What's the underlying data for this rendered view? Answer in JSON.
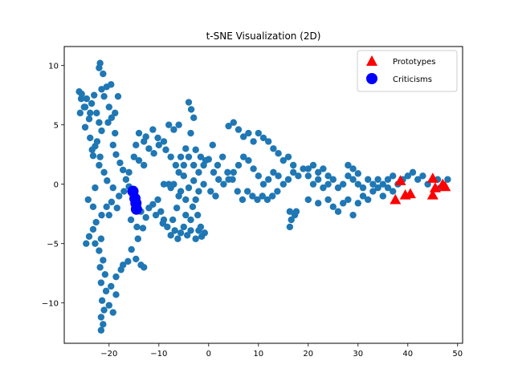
{
  "chart_data": {
    "type": "scatter",
    "title": "t-SNE Visualization (2D)",
    "xlabel": "",
    "ylabel": "",
    "xlim": [
      -29,
      51
    ],
    "ylim": [
      -13.4,
      11.6
    ],
    "xticks": [
      -20,
      -10,
      0,
      10,
      20,
      30,
      40,
      50
    ],
    "yticks": [
      -10,
      -5,
      0,
      5,
      10
    ],
    "xtick_labels": [
      "−20",
      "−10",
      "0",
      "10",
      "20",
      "30",
      "40",
      "50"
    ],
    "ytick_labels": [
      "−10",
      "−5",
      "0",
      "5",
      "10"
    ],
    "grid": false,
    "legend_position": "top-right",
    "legend": [
      {
        "label": "Prototypes",
        "marker": "triangle",
        "color": "#ff0000"
      },
      {
        "label": "Criticisms",
        "marker": "circle",
        "color": "#0000ff"
      }
    ],
    "series": [
      {
        "name": "",
        "marker": "circle",
        "color": "#1f77b4",
        "points": [
          [
            -26,
            7.8
          ],
          [
            -25.5,
            7.6
          ],
          [
            -25,
            6.5
          ],
          [
            -25.8,
            6.0
          ],
          [
            -24.5,
            7.2
          ],
          [
            -24,
            5.5
          ],
          [
            -23.5,
            6.8
          ],
          [
            -23,
            7.5
          ],
          [
            -22.5,
            6.0
          ],
          [
            -22,
            5.2
          ],
          [
            -21.5,
            4.5
          ],
          [
            -24.8,
            4.8
          ],
          [
            -23.8,
            3.9
          ],
          [
            -22.8,
            3.2
          ],
          [
            -21.8,
            2.3
          ],
          [
            -23.2,
            2.4
          ],
          [
            -21.5,
            8.0
          ],
          [
            -22,
            9.8
          ],
          [
            -21.8,
            10.2
          ],
          [
            -21.2,
            9.3
          ],
          [
            -20.5,
            8.2
          ],
          [
            -21,
            7.4
          ],
          [
            -20,
            6.5
          ],
          [
            -19.5,
            5.6
          ],
          [
            -18.8,
            4.3
          ],
          [
            -19.2,
            3.3
          ],
          [
            -18.6,
            2.5
          ],
          [
            -17.8,
            1.8
          ],
          [
            -17.2,
            1.2
          ],
          [
            -16.6,
            0.4
          ],
          [
            -16,
            -0.2
          ],
          [
            -17,
            -0.6
          ],
          [
            -18,
            -1.0
          ],
          [
            -19.5,
            -1.5
          ],
          [
            -20.5,
            -1.9
          ],
          [
            -21.5,
            -2.6
          ],
          [
            -22.6,
            -3.2
          ],
          [
            -23.2,
            -3.8
          ],
          [
            -24,
            -4.4
          ],
          [
            -24.6,
            -5.0
          ],
          [
            -22,
            -5.6
          ],
          [
            -21.2,
            -6.4
          ],
          [
            -21.8,
            -7.0
          ],
          [
            -20.8,
            -7.6
          ],
          [
            -21.6,
            -8.3
          ],
          [
            -20.6,
            -9.0
          ],
          [
            -21.4,
            -9.8
          ],
          [
            -21,
            -10.6
          ],
          [
            -21.6,
            -11.2
          ],
          [
            -21.2,
            -11.8
          ],
          [
            -21.6,
            -12.3
          ],
          [
            -20,
            -10.2
          ],
          [
            -19.2,
            -10.8
          ],
          [
            -18.6,
            -9.3
          ],
          [
            -19.6,
            -8.6
          ],
          [
            -18.6,
            -7.8
          ],
          [
            -17.6,
            -7.2
          ],
          [
            -17.2,
            -6.8
          ],
          [
            -16.2,
            -6.5
          ],
          [
            -15.5,
            -5.5
          ],
          [
            -14.6,
            -6.3
          ],
          [
            -13.6,
            -6.8
          ],
          [
            -13,
            -7.0
          ],
          [
            -14.2,
            -4.6
          ],
          [
            -13.2,
            -3.7
          ],
          [
            -12.6,
            -2.8
          ],
          [
            -12,
            -2.0
          ],
          [
            -11.2,
            -1.7
          ],
          [
            -10.2,
            -1.3
          ],
          [
            -9.6,
            -2.3
          ],
          [
            -9,
            -3.0
          ],
          [
            -8.3,
            -3.6
          ],
          [
            -7.6,
            -4.3
          ],
          [
            -6.8,
            -3.9
          ],
          [
            -6.2,
            -4.6
          ],
          [
            -5.6,
            -4.1
          ],
          [
            -5,
            -3.6
          ],
          [
            -4.3,
            -4.3
          ],
          [
            -3.6,
            -3.9
          ],
          [
            -2.6,
            -4.6
          ],
          [
            -2,
            -3.9
          ],
          [
            -1.4,
            -4.4
          ],
          [
            -0.8,
            -4.1
          ],
          [
            -2.2,
            -2.6
          ],
          [
            -3.2,
            -1.9
          ],
          [
            -4.6,
            -1.3
          ],
          [
            -5.6,
            -0.6
          ],
          [
            -7,
            0.0
          ],
          [
            -8,
            0.0
          ],
          [
            -9,
            0.0
          ],
          [
            -6,
            1.0
          ],
          [
            -5,
            1.6
          ],
          [
            -4,
            2.3
          ],
          [
            -3,
            1.6
          ],
          [
            -2,
            1.0
          ],
          [
            -1,
            1.6
          ],
          [
            0,
            2.1
          ],
          [
            1,
            1.0
          ],
          [
            2,
            0.4
          ],
          [
            3,
            0.0
          ],
          [
            4,
            0.4
          ],
          [
            5,
            1.0
          ],
          [
            6,
            1.6
          ],
          [
            7,
            2.3
          ],
          [
            8,
            2.0
          ],
          [
            9,
            1.3
          ],
          [
            10,
            0.7
          ],
          [
            11,
            0.0
          ],
          [
            12,
            0.4
          ],
          [
            13,
            1.0
          ],
          [
            14,
            0.7
          ],
          [
            15,
            0.0
          ],
          [
            16,
            0.4
          ],
          [
            17,
            1.0
          ],
          [
            18,
            0.7
          ],
          [
            19,
            1.3
          ],
          [
            20,
            0.7
          ],
          [
            21,
            0.0
          ],
          [
            22,
            0.4
          ],
          [
            23,
            -0.3
          ],
          [
            24,
            0.0
          ],
          [
            25,
            0.4
          ],
          [
            26,
            -0.3
          ],
          [
            27,
            0.0
          ],
          [
            28,
            0.7
          ],
          [
            29,
            0.4
          ],
          [
            30,
            0.0
          ],
          [
            31,
            -0.3
          ],
          [
            32,
            0.4
          ],
          [
            33,
            0.0
          ],
          [
            34,
            0.4
          ],
          [
            35,
            0.0
          ],
          [
            36,
            0.4
          ],
          [
            37,
            0.7
          ],
          [
            38,
            0.0
          ],
          [
            39,
            0.4
          ],
          [
            40,
            0.7
          ],
          [
            41,
            1.0
          ],
          [
            42,
            0.4
          ],
          [
            43,
            0.7
          ],
          [
            44,
            0.0
          ],
          [
            46,
            0.4
          ],
          [
            46.5,
            -0.3
          ],
          [
            48,
            0.4
          ],
          [
            4,
            4.9
          ],
          [
            5,
            5.2
          ],
          [
            6,
            4.6
          ],
          [
            7,
            4.0
          ],
          [
            8,
            4.3
          ],
          [
            9,
            3.6
          ],
          [
            10,
            4.3
          ],
          [
            11,
            3.9
          ],
          [
            12,
            3.6
          ],
          [
            13,
            3.0
          ],
          [
            14,
            2.6
          ],
          [
            15,
            2.0
          ],
          [
            16,
            2.3
          ],
          [
            17,
            1.6
          ],
          [
            -4,
            6.9
          ],
          [
            -3.5,
            6.3
          ],
          [
            -3,
            5.6
          ],
          [
            -6,
            5.0
          ],
          [
            -7,
            4.6
          ],
          [
            -8,
            5.0
          ],
          [
            -9,
            3.6
          ],
          [
            -10,
            3.3
          ],
          [
            -11,
            2.6
          ],
          [
            -12,
            3.0
          ],
          [
            -13,
            3.6
          ],
          [
            -14,
            4.3
          ],
          [
            -14.6,
            3.3
          ],
          [
            -15,
            2.3
          ],
          [
            -14,
            2.0
          ],
          [
            -16,
            1.0
          ],
          [
            -13,
            1.6
          ],
          [
            -12.6,
            4.0
          ],
          [
            -11.2,
            4.6
          ],
          [
            -10.2,
            3.9
          ],
          [
            -8.6,
            2.9
          ],
          [
            -7.6,
            2.3
          ],
          [
            -6.6,
            1.6
          ],
          [
            -5.6,
            2.3
          ],
          [
            -4.6,
            3.0
          ],
          [
            -3.6,
            4.3
          ],
          [
            -2.6,
            2.9
          ],
          [
            -1.6,
            2.3
          ],
          [
            -0.6,
            2.0
          ],
          [
            0.8,
            3.3
          ],
          [
            1.8,
            1.6
          ],
          [
            2.8,
            2.3
          ],
          [
            3.8,
            1.0
          ],
          [
            4.8,
            0.4
          ],
          [
            5.8,
            -0.6
          ],
          [
            6.8,
            -1.3
          ],
          [
            7.8,
            -0.6
          ],
          [
            8.8,
            -1.0
          ],
          [
            9.8,
            -1.3
          ],
          [
            10.8,
            -1.0
          ],
          [
            11.8,
            -1.3
          ],
          [
            12.8,
            -1.0
          ],
          [
            13.8,
            -0.6
          ],
          [
            16.3,
            -2.3
          ],
          [
            16.6,
            -3.0
          ],
          [
            16.3,
            -3.6
          ],
          [
            17.3,
            -2.6
          ],
          [
            17.6,
            -2.3
          ],
          [
            20,
            -1.3
          ],
          [
            22,
            -1.6
          ],
          [
            24,
            -1.3
          ],
          [
            25,
            -1.9
          ],
          [
            26,
            -2.3
          ],
          [
            27,
            -1.6
          ],
          [
            28,
            -1.3
          ],
          [
            29,
            -2.6
          ],
          [
            30,
            -1.6
          ],
          [
            31,
            -1.0
          ],
          [
            32,
            -1.3
          ],
          [
            33,
            -0.6
          ],
          [
            34,
            -0.3
          ],
          [
            35,
            -1.0
          ],
          [
            36,
            -0.3
          ],
          [
            37,
            -0.6
          ],
          [
            28,
            1.6
          ],
          [
            29,
            1.3
          ],
          [
            30,
            0.9
          ],
          [
            20,
            1.3
          ],
          [
            21,
            1.6
          ],
          [
            22,
            1.0
          ],
          [
            23,
            1.3
          ],
          [
            24,
            0.7
          ],
          [
            -22.4,
            3.6
          ],
          [
            -23.4,
            2.9
          ],
          [
            -22,
            1.6
          ],
          [
            -21,
            1.0
          ],
          [
            -20.4,
            0.3
          ],
          [
            -22.8,
            -0.3
          ],
          [
            -24.2,
            -1.3
          ],
          [
            -23.2,
            -1.9
          ],
          [
            -19.2,
            -0.3
          ],
          [
            -20,
            -2.6
          ],
          [
            -18.4,
            -2.0
          ],
          [
            -15.6,
            -3.0
          ],
          [
            -14.4,
            -3.6
          ],
          [
            -13.6,
            -2.3
          ],
          [
            -10.6,
            -2.6
          ],
          [
            -9.2,
            -3.3
          ],
          [
            -7.2,
            -3.0
          ],
          [
            -6.4,
            -2.0
          ],
          [
            -3.6,
            -3.0
          ],
          [
            -1.6,
            -3.6
          ],
          [
            -2.6,
            -1.3
          ],
          [
            -4.6,
            -2.6
          ],
          [
            -6,
            -1.0
          ],
          [
            -7.6,
            -0.3
          ],
          [
            -5,
            0.7
          ],
          [
            -4,
            -0.3
          ],
          [
            -3,
            0.3
          ],
          [
            -2,
            -0.6
          ],
          [
            -1,
            0.0
          ],
          [
            0.4,
            -0.6
          ],
          [
            1.4,
            -1.0
          ],
          [
            -20.2,
            5.2
          ],
          [
            -18.8,
            6.0
          ],
          [
            -18.2,
            7.4
          ],
          [
            -19.6,
            8.4
          ],
          [
            -23.8,
            6.0
          ],
          [
            -24.8,
            6.5
          ],
          [
            -25.6,
            7.2
          ],
          [
            -21.6,
            -4.6
          ],
          [
            -22.8,
            -5.0
          ]
        ]
      },
      {
        "name": "Prototypes",
        "marker": "triangle",
        "color": "#ff0000",
        "points": [
          [
            37.5,
            -1.3
          ],
          [
            38.5,
            0.3
          ],
          [
            39.5,
            -0.9
          ],
          [
            40.5,
            -0.8
          ],
          [
            45,
            0.5
          ],
          [
            45.5,
            -0.3
          ],
          [
            45,
            -0.9
          ],
          [
            47,
            0.0
          ],
          [
            47.5,
            -0.2
          ]
        ]
      },
      {
        "name": "Criticisms",
        "marker": "circle",
        "color": "#0000ff",
        "points": [
          [
            -15.2,
            -0.6
          ],
          [
            -14.8,
            -1.2
          ],
          [
            -14.6,
            -1.6
          ],
          [
            -14.5,
            -2.1
          ]
        ]
      }
    ]
  }
}
